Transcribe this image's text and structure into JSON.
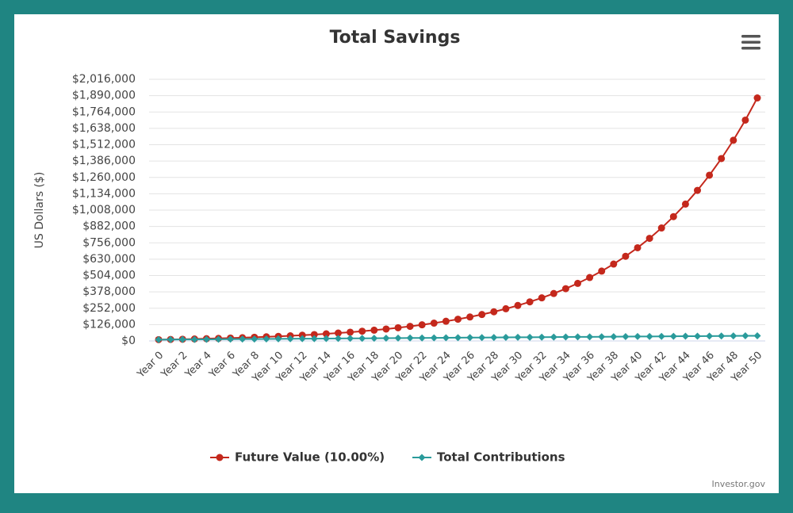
{
  "chart_data": {
    "type": "line",
    "title": "Total Savings",
    "y_label": "US Dollars ($)",
    "credit": "Investor.gov",
    "categories": [
      "Year 0",
      null,
      "Year 2",
      null,
      "Year 4",
      null,
      "Year 6",
      null,
      "Year 8",
      null,
      "Year 10",
      null,
      "Year 12",
      null,
      "Year 14",
      null,
      "Year 16",
      null,
      "Year 18",
      null,
      "Year 20",
      null,
      "Year 22",
      null,
      "Year 24",
      null,
      "Year 26",
      null,
      "Year 28",
      null,
      "Year 30",
      null,
      "Year 32",
      null,
      "Year 34",
      null,
      "Year 36",
      null,
      "Year 38",
      null,
      "Year 40",
      null,
      "Year 42",
      null,
      "Year 44",
      null,
      "Year 46",
      null,
      "Year 48",
      null,
      "Year 50"
    ],
    "series": [
      {
        "name": "Future Value (10.00%)",
        "color": "#c4281c",
        "marker": "circle",
        "values": [
          10000,
          11600,
          13360,
          15296,
          17426,
          19768,
          22345,
          25179,
          28297,
          31727,
          35500,
          39650,
          44215,
          49236,
          54760,
          60836,
          67520,
          74872,
          82959,
          91855,
          101640,
          112404,
          124244,
          137269,
          151596,
          167355,
          184691,
          203760,
          224736,
          247809,
          273190,
          301109,
          331820,
          365602,
          402763,
          443639,
          488603,
          538063,
          592469,
          652316,
          718148,
          790563,
          870219,
          957841,
          1054225,
          1160248,
          1276872,
          1405160,
          1546276,
          1701503,
          1872254
        ]
      },
      {
        "name": "Total Contributions",
        "color": "#2a9b9b",
        "marker": "diamond",
        "values": [
          10000,
          10600,
          11200,
          11800,
          12400,
          13000,
          13600,
          14200,
          14800,
          15400,
          16000,
          16600,
          17200,
          17800,
          18400,
          19000,
          19600,
          20200,
          20800,
          21400,
          22000,
          22600,
          23200,
          23800,
          24400,
          25000,
          25600,
          26200,
          26800,
          27400,
          28000,
          28600,
          29200,
          29800,
          30400,
          31000,
          31600,
          32200,
          32800,
          33400,
          34000,
          34600,
          35200,
          35800,
          36400,
          37000,
          37600,
          38200,
          38800,
          39400,
          40000
        ]
      }
    ],
    "ylim": [
      0,
      2016000
    ],
    "yticks": [
      {
        "value": 0,
        "label": "$0"
      },
      {
        "value": 126000,
        "label": "$126,000"
      },
      {
        "value": 252000,
        "label": "$252,000"
      },
      {
        "value": 378000,
        "label": "$378,000"
      },
      {
        "value": 504000,
        "label": "$504,000"
      },
      {
        "value": 630000,
        "label": "$630,000"
      },
      {
        "value": 756000,
        "label": "$756,000"
      },
      {
        "value": 882000,
        "label": "$882,000"
      },
      {
        "value": 1008000,
        "label": "$1,008,000"
      },
      {
        "value": 1134000,
        "label": "$1,134,000"
      },
      {
        "value": 1260000,
        "label": "$1,260,000"
      },
      {
        "value": 1386000,
        "label": "$1,386,000"
      },
      {
        "value": 1512000,
        "label": "$1,512,000"
      },
      {
        "value": 1638000,
        "label": "$1,638,000"
      },
      {
        "value": 1764000,
        "label": "$1,764,000"
      },
      {
        "value": 1890000,
        "label": "$1,890,000"
      },
      {
        "value": 2016000,
        "label": "$2,016,000"
      }
    ],
    "grid": true,
    "legend": "bottom"
  }
}
